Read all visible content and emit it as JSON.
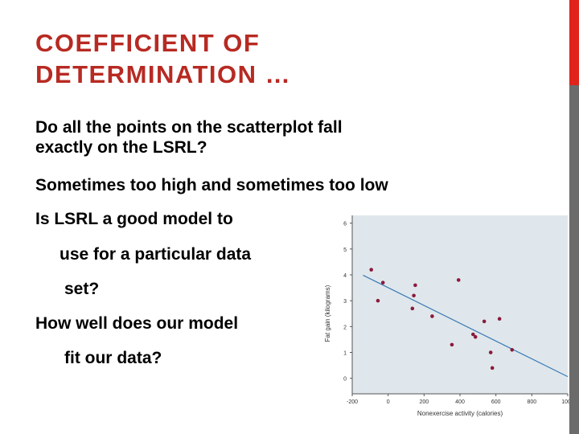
{
  "slide": {
    "title_line1": "COEFFICIENT OF",
    "title_line2": "DETERMINATION …",
    "q1_line1": "Do all the points on the scatterplot fall",
    "q1_line2": "exactly on the LSRL?",
    "answer": "Sometimes too high and sometimes too low",
    "q2_line1": "Is LSRL a good model to",
    "q2_line2": "use for a particular data",
    "q2_line3": "set?",
    "q3_line1": "How well does our model",
    "q3_line2": "fit our data?"
  },
  "colors": {
    "title": "#b72a22",
    "text": "#000000",
    "edge_red": "#e0231b",
    "edge_gray": "#6b6b6b",
    "plot_bg": "#dfe7ec",
    "points": "#8b1a3a",
    "line": "#3a7ab5"
  },
  "chart_data": {
    "type": "scatter",
    "xlabel": "Nonexercise activity (calories)",
    "ylabel": "Fat gain (kilograms)",
    "xlim": [
      -200,
      1000
    ],
    "ylim": [
      -0.6,
      6.3
    ],
    "xticks": [
      -200,
      0,
      200,
      400,
      600,
      800,
      1000
    ],
    "xtick_labels": [
      "-200",
      "0",
      "200",
      "400",
      "600",
      "800",
      "1000"
    ],
    "yticks": [
      0,
      1,
      2,
      3,
      4,
      5,
      6
    ],
    "ytick_labels": [
      "0",
      "1",
      "2",
      "3",
      "4",
      "5",
      "6"
    ],
    "grid": false,
    "points": [
      {
        "x": -94,
        "y": 4.2
      },
      {
        "x": -57,
        "y": 3.0
      },
      {
        "x": -29,
        "y": 3.7
      },
      {
        "x": 135,
        "y": 2.7
      },
      {
        "x": 143,
        "y": 3.2
      },
      {
        "x": 151,
        "y": 3.6
      },
      {
        "x": 245,
        "y": 2.4
      },
      {
        "x": 355,
        "y": 1.3
      },
      {
        "x": 392,
        "y": 3.8
      },
      {
        "x": 473,
        "y": 1.7
      },
      {
        "x": 486,
        "y": 1.6
      },
      {
        "x": 535,
        "y": 2.2
      },
      {
        "x": 571,
        "y": 1.0
      },
      {
        "x": 580,
        "y": 0.4
      },
      {
        "x": 620,
        "y": 2.3
      },
      {
        "x": 690,
        "y": 1.1
      }
    ],
    "regression_line": {
      "intercept": 3.505,
      "slope": -0.00344
    }
  }
}
